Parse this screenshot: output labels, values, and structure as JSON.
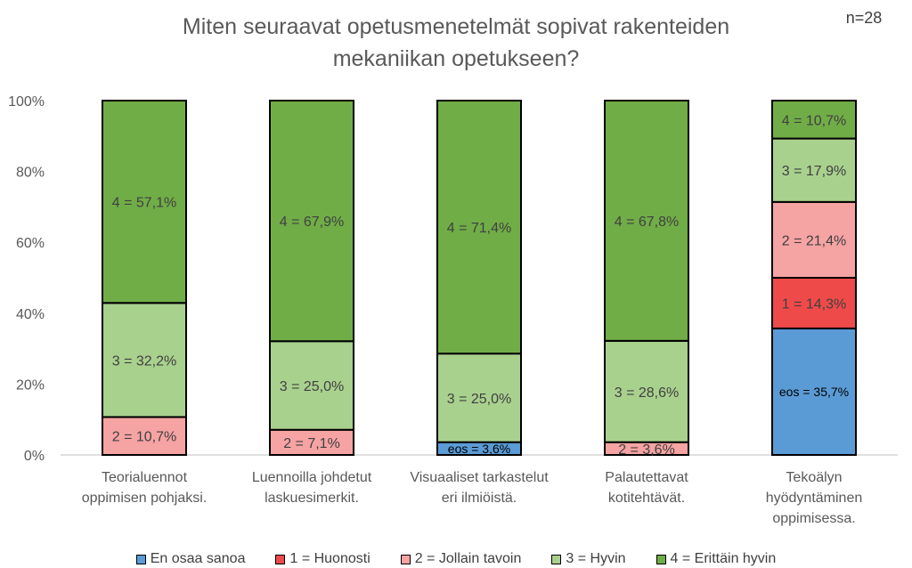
{
  "chart_data": {
    "type": "bar",
    "stacked": true,
    "percent_stacked": true,
    "title": "Miten seuraavat opetusmenetelmät sopivat rakenteiden mekaniikan opetukseen?",
    "title_lines": [
      "Miten seuraavat opetusmenetelmät sopivat rakenteiden",
      "mekaniikan opetukseen?"
    ],
    "sample_note": "n=28",
    "categories": [
      "Teorialuennot oppimisen pohjaksi.",
      "Luennoilla johdetut laskuesimerkit.",
      "Visuaaliset tarkastelut eri ilmiöistä.",
      "Palautettavat kotitehtävät.",
      "Tekoälyn hyödyntäminen oppimisessa."
    ],
    "category_lines": [
      [
        "Teorialuennot",
        "oppimisen pohjaksi."
      ],
      [
        "Luennoilla johdetut",
        "laskuesimerkit."
      ],
      [
        "Visuaaliset tarkastelut",
        "eri ilmiöistä."
      ],
      [
        "Palautettavat",
        "kotitehtävät."
      ],
      [
        "Tekoälyn",
        "hyödyntäminen",
        "oppimisessa."
      ]
    ],
    "series": [
      {
        "name": "En osaa sanoa",
        "color": "#5b9bd5",
        "values": [
          0,
          0,
          3.6,
          0,
          35.7
        ],
        "labels": [
          "",
          "",
          "eos = 3,6%",
          "",
          "eos = 35,7%"
        ]
      },
      {
        "name": "1 = Huonosti",
        "color": "#ef4a4a",
        "values": [
          0,
          0,
          0,
          0,
          14.3
        ],
        "labels": [
          "",
          "",
          "",
          "",
          "1 = 14,3%"
        ]
      },
      {
        "name": "2 = Jollain tavoin",
        "color": "#f6a3a3",
        "values": [
          10.7,
          7.1,
          0,
          3.6,
          21.4
        ],
        "labels": [
          "2 = 10,7%",
          "2 = 7,1%",
          "",
          "2 = 3,6%",
          "2 = 21,4%"
        ]
      },
      {
        "name": "3 = Hyvin",
        "color": "#a9d18e",
        "values": [
          32.2,
          25.0,
          25.0,
          28.6,
          17.9
        ],
        "labels": [
          "3 = 32,2%",
          "3 = 25,0%",
          "3 = 25,0%",
          "3 = 28,6%",
          "3 = 17,9%"
        ]
      },
      {
        "name": "4 = Erittäin hyvin",
        "color": "#70ad47",
        "values": [
          57.1,
          67.9,
          71.4,
          67.8,
          10.7
        ],
        "labels": [
          "4 = 57,1%",
          "4 = 67,9%",
          "4 = 71,4%",
          "4 = 67,8%",
          "4 = 10,7%"
        ]
      }
    ],
    "y_ticks": [
      "0%",
      "20%",
      "40%",
      "60%",
      "80%",
      "100%"
    ],
    "ylim": [
      0,
      100
    ],
    "xlabel": "",
    "ylabel": "",
    "grid": false,
    "legend_position": "bottom"
  }
}
